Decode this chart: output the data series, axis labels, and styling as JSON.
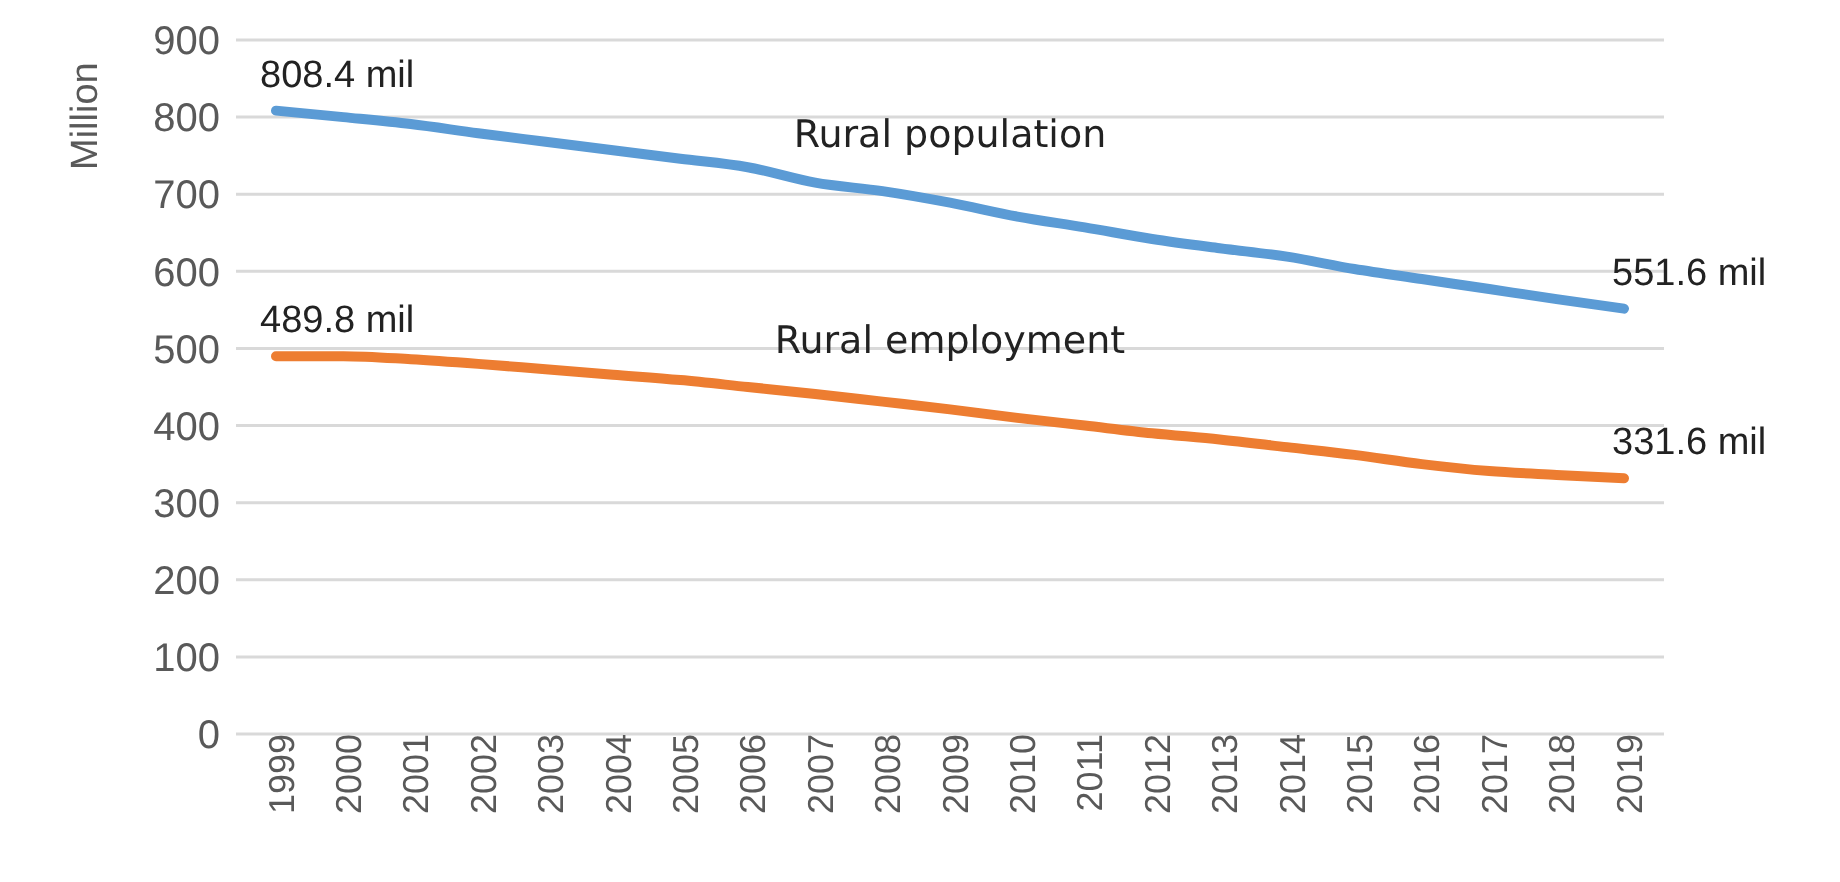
{
  "chart_data": {
    "type": "line",
    "ylabel": "Million",
    "categories": [
      "1999",
      "2000",
      "2001",
      "2002",
      "2003",
      "2004",
      "2005",
      "2006",
      "2007",
      "2008",
      "2009",
      "2010",
      "2011",
      "2012",
      "2013",
      "2014",
      "2015",
      "2016",
      "2017",
      "2018",
      "2019"
    ],
    "series": [
      {
        "name": "Rural population",
        "color": "#5b9bd5",
        "values": [
          808.4,
          800,
          791,
          779,
          768,
          757,
          746,
          735,
          715,
          704,
          689,
          671,
          657,
          642,
          630,
          619,
          603,
          590,
          577,
          564,
          551.6
        ],
        "value_labels": [
          "808.4 mil",
          null,
          null,
          null,
          null,
          null,
          null,
          null,
          null,
          null,
          null,
          null,
          null,
          null,
          null,
          null,
          null,
          null,
          null,
          null,
          "551.6 mil"
        ]
      },
      {
        "name": "Rural employment",
        "color": "#ed7d31",
        "values": [
          489.8,
          490,
          486,
          480,
          473,
          466,
          459,
          450,
          441,
          431,
          421,
          410,
          400,
          390,
          382,
          372,
          362,
          350,
          341,
          336,
          331.6
        ],
        "value_labels": [
          "489.8 mil",
          null,
          null,
          null,
          null,
          null,
          null,
          null,
          null,
          null,
          null,
          null,
          null,
          null,
          null,
          null,
          null,
          null,
          null,
          null,
          "331.6 mil"
        ]
      }
    ],
    "ylim": [
      0,
      900
    ],
    "yticks": [
      0,
      100,
      200,
      300,
      400,
      500,
      600,
      700,
      800,
      900
    ],
    "grid": "y",
    "legend": false,
    "marker": "none",
    "line_style": "solid"
  }
}
